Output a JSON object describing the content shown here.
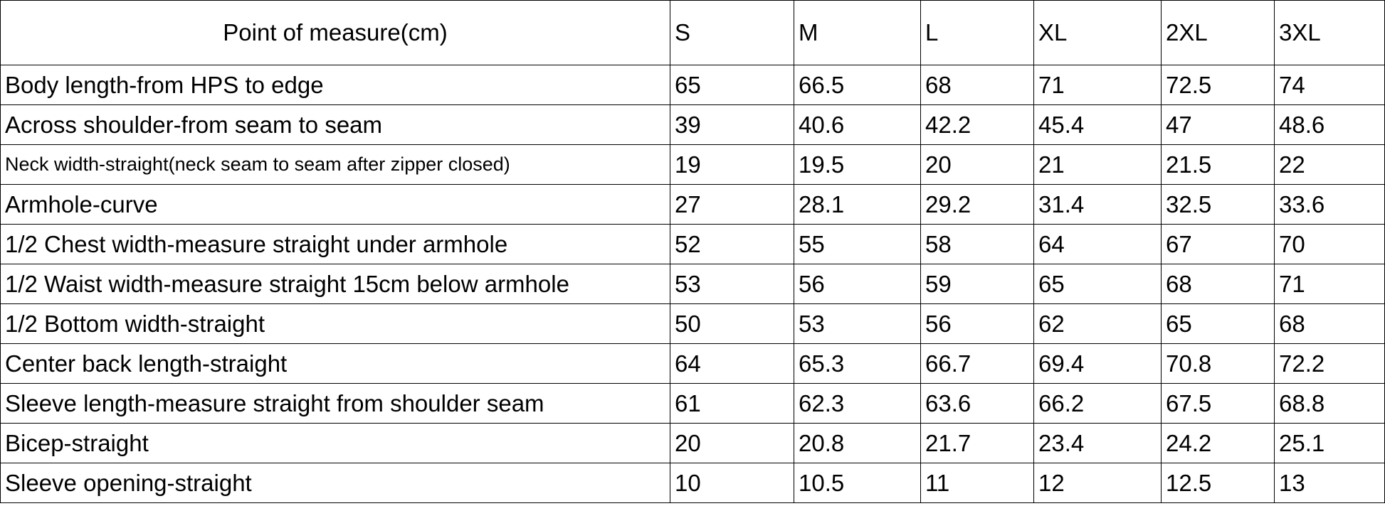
{
  "table": {
    "header": [
      "Point of measure(cm)",
      "S",
      "M",
      "L",
      "XL",
      "2XL",
      "3XL"
    ],
    "rows": [
      [
        "Body  length-from HPS to edge",
        "65",
        "66.5",
        "68",
        "71",
        "72.5",
        "74"
      ],
      [
        "Across shoulder-from seam to seam",
        "39",
        "40.6",
        "42.2",
        "45.4",
        "47",
        "48.6"
      ],
      [
        "Neck width-straight(neck seam to seam after zipper closed)",
        "19",
        "19.5",
        "20",
        "21",
        "21.5",
        "22"
      ],
      [
        "Armhole-curve",
        "27",
        "28.1",
        "29.2",
        "31.4",
        "32.5",
        "33.6"
      ],
      [
        "1/2 Chest width-measure straight under armhole",
        "52",
        "55",
        "58",
        "64",
        "67",
        "70"
      ],
      [
        "1/2 Waist width-measure straight 15cm below armhole",
        "53",
        "56",
        "59",
        "65",
        "68",
        "71"
      ],
      [
        "1/2 Bottom width-straight",
        "50",
        "53",
        "56",
        "62",
        "65",
        "68"
      ],
      [
        "Center back length-straight",
        "64",
        "65.3",
        "66.7",
        "69.4",
        "70.8",
        "72.2"
      ],
      [
        "Sleeve length-measure straight from shoulder seam",
        "61",
        "62.3",
        "63.6",
        "66.2",
        "67.5",
        "68.8"
      ],
      [
        "Bicep-straight",
        "20",
        "20.8",
        "21.7",
        "23.4",
        "24.2",
        "25.1"
      ],
      [
        "Sleeve opening-straight",
        "10",
        "10.5",
        "11",
        "12",
        "12.5",
        "13"
      ]
    ]
  }
}
